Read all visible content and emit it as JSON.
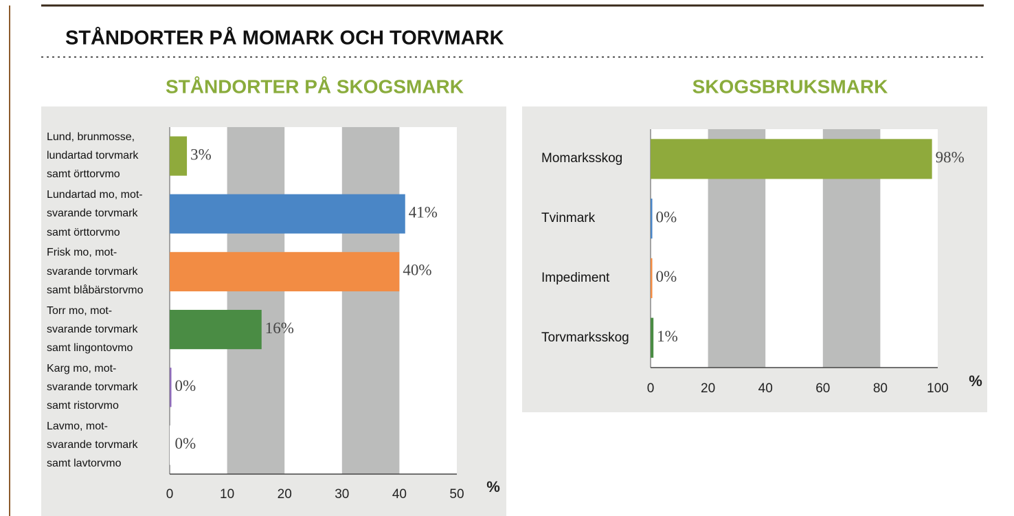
{
  "title": "STÅNDORTER PÅ MOMARK OCH TORVMARK",
  "chart_data": [
    {
      "type": "barh",
      "title": "STÅNDORTER PÅ SKOGSMARK",
      "categories": [
        "Lund, brunmosse,\nlundartad torvmark\nsamt örttorvmo",
        "Lundartad mo, mot-\nsvarande torvmark\nsamt örttorvmo",
        "Frisk mo, mot-\nsvarande torvmark\nsamt blåbärstorvmo",
        "Torr mo, mot-\nsvarande torvmark\nsamt lingontovmo",
        "Karg mo, mot-\nsvarande torvmark\nsamt ristorvmo",
        "Lavmo, mot-\nsvarande torvmark\nsamt lavtorvmo"
      ],
      "values": [
        3,
        41,
        40,
        16,
        0,
        0
      ],
      "value_labels": [
        "3%",
        "41%",
        "40%",
        "16%",
        "0%",
        "0%"
      ],
      "colors": [
        "#8faa3c",
        "#4a86c6",
        "#f28c44",
        "#4a8c44",
        "#8e6bb8",
        "#ffffff"
      ],
      "xlim": [
        0,
        50
      ],
      "xticks": [
        0,
        10,
        20,
        30,
        40,
        50
      ],
      "x_label": "%",
      "grid": "bands"
    },
    {
      "type": "barh",
      "title": "SKOGSBRUKSMARK",
      "categories": [
        "Momarksskog",
        "Tvinmark",
        "Impediment",
        "Torvmarksskog"
      ],
      "values": [
        98,
        0,
        0,
        1
      ],
      "value_labels": [
        "98%",
        "0%",
        "0%",
        "1%"
      ],
      "colors": [
        "#8faa3c",
        "#4a86c6",
        "#f28c44",
        "#4a8c44"
      ],
      "xlim": [
        0,
        100
      ],
      "xticks": [
        0,
        20,
        40,
        60,
        80,
        100
      ],
      "x_label": "%",
      "grid": "bands"
    }
  ]
}
